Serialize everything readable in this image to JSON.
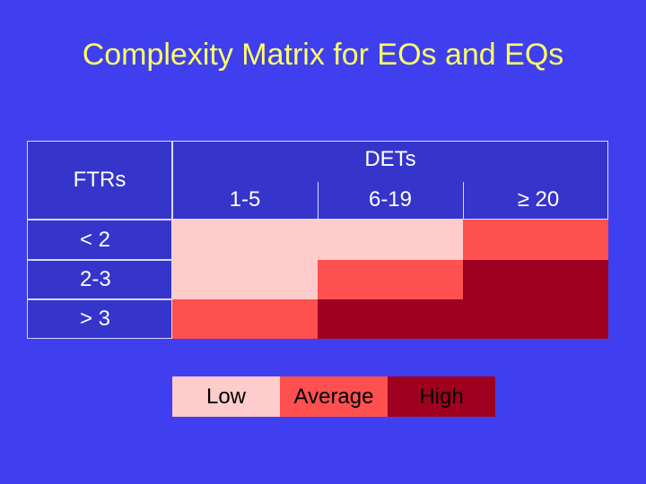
{
  "title": "Complexity Matrix for EOs and EQs",
  "matrix": {
    "row_header": "FTRs",
    "col_header": "DETs",
    "columns": [
      "1-5",
      "6-19",
      "≥ 20"
    ],
    "rows": [
      "< 2",
      "2-3",
      "> 3"
    ],
    "cells": [
      [
        "Low",
        "Low",
        "Average"
      ],
      [
        "Low",
        "Average",
        "High"
      ],
      [
        "Average",
        "High",
        "High"
      ]
    ]
  },
  "legend": [
    {
      "label": "Low",
      "color": "#ffcccc"
    },
    {
      "label": "Average",
      "color": "#ff5050"
    },
    {
      "label": "High",
      "color": "#a00020"
    }
  ]
}
